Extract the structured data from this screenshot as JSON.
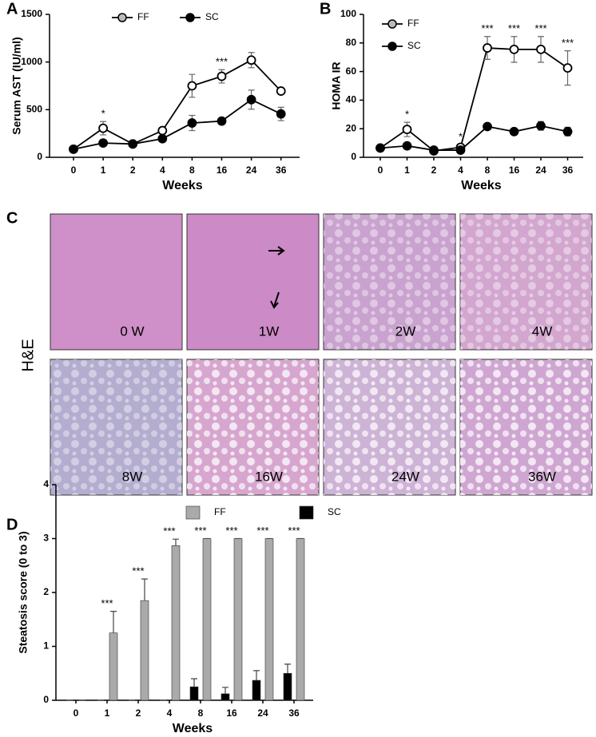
{
  "chart_data": [
    {
      "type": "line",
      "panel": "A",
      "xlabel": "Weeks",
      "ylabel": "Serum AST (IU/ml)",
      "categories": [
        "0",
        "1",
        "2",
        "4",
        "8",
        "16",
        "24",
        "36"
      ],
      "ylim": [
        0,
        1500
      ],
      "yticks": [
        0,
        500,
        1000,
        1500
      ],
      "series": [
        {
          "name": "FF",
          "color": "#000000",
          "marker_fill": "#ffffff",
          "values": [
            85,
            305,
            140,
            280,
            750,
            850,
            1020,
            695
          ],
          "errors": [
            20,
            70,
            25,
            30,
            120,
            70,
            80,
            30
          ]
        },
        {
          "name": "SC",
          "color": "#000000",
          "marker_fill": "#000000",
          "values": [
            85,
            150,
            140,
            195,
            360,
            380,
            605,
            455
          ],
          "errors": [
            15,
            20,
            20,
            30,
            80,
            20,
            100,
            70
          ]
        }
      ],
      "significance": [
        null,
        "*",
        null,
        null,
        null,
        "***",
        null,
        null
      ]
    },
    {
      "type": "line",
      "panel": "B",
      "xlabel": "Weeks",
      "ylabel": "HOMA IR",
      "categories": [
        "0",
        "1",
        "2",
        "4",
        "8",
        "16",
        "24",
        "36"
      ],
      "ylim": [
        0,
        100
      ],
      "yticks": [
        0,
        20,
        40,
        60,
        80,
        100
      ],
      "series": [
        {
          "name": "FF",
          "color": "#000000",
          "marker_fill": "#ffffff",
          "values": [
            6.5,
            19.5,
            4.5,
            7,
            76.5,
            75.5,
            75.5,
            62.5
          ],
          "errors": [
            1,
            5,
            1,
            2,
            8,
            9,
            9,
            12
          ]
        },
        {
          "name": "SC",
          "color": "#000000",
          "marker_fill": "#000000",
          "values": [
            6.5,
            8,
            5,
            5,
            21.5,
            18,
            22,
            18
          ],
          "errors": [
            1,
            1.5,
            1,
            1,
            2,
            1.5,
            3,
            3
          ]
        }
      ],
      "significance": [
        null,
        "*",
        null,
        "*",
        "***",
        "***",
        "***",
        "***"
      ]
    },
    {
      "type": "bar",
      "panel": "D",
      "xlabel": "Weeks",
      "ylabel": "Steatosis score (0 to 3)",
      "categories": [
        "0",
        "1",
        "2",
        "4",
        "8",
        "16",
        "24",
        "36"
      ],
      "ylim": [
        0,
        4
      ],
      "yticks": [
        0,
        1,
        2,
        3,
        4
      ],
      "series": [
        {
          "name": "FF",
          "color": "#aaaaaa",
          "values": [
            0,
            1.25,
            1.85,
            2.87,
            3,
            3,
            3,
            3
          ],
          "errors": [
            0,
            0.4,
            0.4,
            0.12,
            0,
            0,
            0,
            0
          ]
        },
        {
          "name": "SC",
          "color": "#000000",
          "values": [
            0,
            0,
            0,
            0,
            0.25,
            0.12,
            0.37,
            0.5
          ],
          "errors": [
            0,
            0,
            0,
            0,
            0.15,
            0.12,
            0.18,
            0.17
          ]
        }
      ],
      "significance": [
        null,
        "***",
        "***",
        "***",
        "***",
        "***",
        "***",
        "***"
      ]
    }
  ],
  "histology": {
    "panel": "C",
    "stain": "H&E",
    "images": [
      {
        "label": "0 W"
      },
      {
        "label": "1W"
      },
      {
        "label": "2W"
      },
      {
        "label": "4W"
      },
      {
        "label": "8W"
      },
      {
        "label": "16W"
      },
      {
        "label": "24W"
      },
      {
        "label": "36W"
      }
    ]
  }
}
